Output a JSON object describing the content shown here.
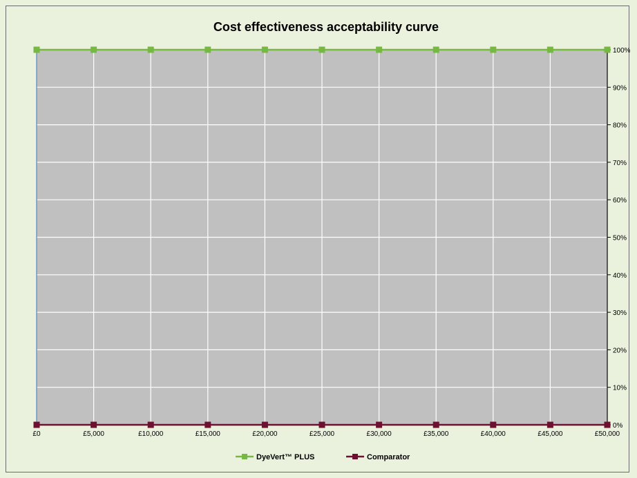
{
  "chart_data": {
    "type": "line",
    "title": "Cost effectiveness acceptability curve",
    "xlabel": "",
    "ylabel": "",
    "x": [
      0,
      5000,
      10000,
      15000,
      20000,
      25000,
      30000,
      35000,
      40000,
      45000,
      50000
    ],
    "x_tick_labels": [
      "£0",
      "£5,000",
      "£10,000",
      "£15,000",
      "£20,000",
      "£25,000",
      "£30,000",
      "£35,000",
      "£40,000",
      "£45,000",
      "£50,000"
    ],
    "xlim": [
      0,
      50000
    ],
    "ylim": [
      0,
      100
    ],
    "y_ticks": [
      0,
      10,
      20,
      30,
      40,
      50,
      60,
      70,
      80,
      90,
      100
    ],
    "y_tick_labels": [
      "0%",
      "10%",
      "20%",
      "30%",
      "40%",
      "50%",
      "60%",
      "70%",
      "80%",
      "90%",
      "100%"
    ],
    "y_axis_side": "right",
    "grid": true,
    "legend_position": "bottom",
    "plot_background": "#c0c0c0",
    "series": [
      {
        "name": "DyeVert™ PLUS",
        "color": "#77b843",
        "marker": "square",
        "values": [
          100,
          100,
          100,
          100,
          100,
          100,
          100,
          100,
          100,
          100,
          100
        ]
      },
      {
        "name": "Comparator",
        "color": "#6e1030",
        "marker": "square",
        "values": [
          0,
          0,
          0,
          0,
          0,
          0,
          0,
          0,
          0,
          0,
          0
        ]
      }
    ]
  }
}
